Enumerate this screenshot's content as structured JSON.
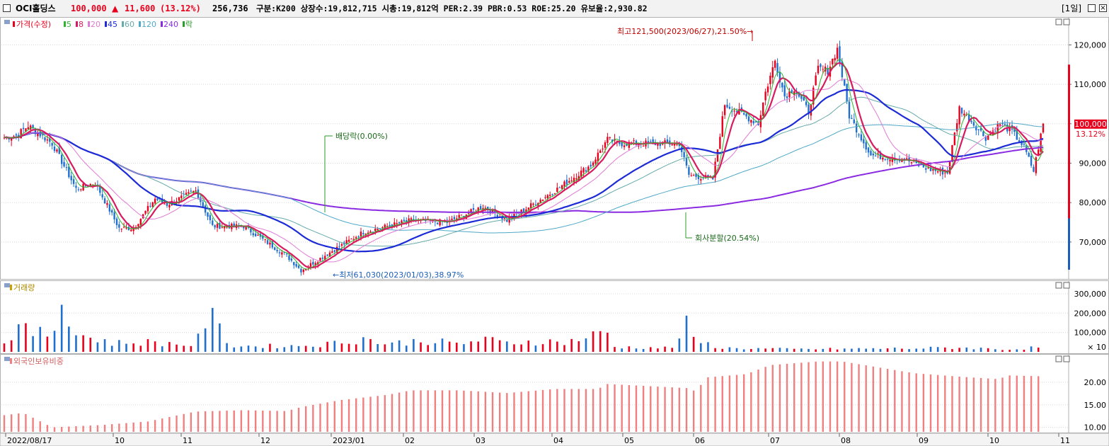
{
  "header": {
    "checkbox_label": "",
    "name": "OCI홀딩스",
    "price": "100,000",
    "change_arrow": "▲",
    "change": "11,600",
    "change_pct": "(13.12%)",
    "volume": "256,736",
    "info": "구분:K200 상장수:19,812,715 시총:19,812억 PER:2.39 PBR:0.53 ROE:25.20 유보율:2,930.82",
    "period": "[1일]"
  },
  "colors": {
    "up": "#e8001c",
    "down": "#1f6fcf",
    "ma5": "#2fb52f",
    "ma8": "#d81b60",
    "ma20": "#e07ad6",
    "ma45": "#1c2bd6",
    "ma60": "#66aaaa",
    "ma120": "#4fa8c8",
    "ma240": "#8a2be2",
    "foreign": "#f08080"
  },
  "legend": {
    "price": "가격(수정)",
    "ma": [
      {
        "label": "5",
        "key": "ma5"
      },
      {
        "label": "8",
        "key": "ma8"
      },
      {
        "label": "20",
        "key": "ma20"
      },
      {
        "label": "45",
        "key": "ma45"
      },
      {
        "label": "60",
        "key": "ma60"
      },
      {
        "label": "120",
        "key": "ma120"
      },
      {
        "label": "240",
        "key": "ma240"
      }
    ],
    "rak": "락"
  },
  "volume_label": "거래량",
  "foreign_label": "외국인보유비중",
  "annotations": {
    "high": "최고121,500(2023/06/27),21.50%→",
    "low": "←최저61,030(2023/01/03),38.97%",
    "dividend": "배당락(0.00%)",
    "split": "회사분할(20.54%)"
  },
  "current": {
    "price_tag": "100,000",
    "pct_tag": "13.12%"
  },
  "chart_data": [
    {
      "type": "candlestick",
      "title": "",
      "y_ticks": [
        "120,000",
        "110,000",
        "100,000",
        "90,000",
        "80,000",
        "70,000"
      ],
      "y_tick_values": [
        120000,
        110000,
        100000,
        90000,
        80000,
        70000
      ],
      "ylim": [
        61000,
        126000
      ],
      "x_tick_labels": [
        "2022/08/17",
        "10",
        "11",
        "12",
        "2023/01",
        "02",
        "03",
        "04",
        "05",
        "06",
        "07",
        "08",
        "09",
        "10",
        "11"
      ],
      "close_anchors": [
        [
          0,
          96500
        ],
        [
          5,
          97000
        ],
        [
          10,
          99500
        ],
        [
          20,
          95000
        ],
        [
          30,
          83500
        ],
        [
          38,
          85000
        ],
        [
          48,
          73500
        ],
        [
          54,
          73500
        ],
        [
          63,
          81000
        ],
        [
          68,
          79500
        ],
        [
          80,
          83000
        ],
        [
          87,
          74000
        ],
        [
          100,
          74000
        ],
        [
          118,
          66500
        ],
        [
          124,
          62800
        ],
        [
          135,
          67000
        ],
        [
          150,
          72500
        ],
        [
          170,
          75500
        ],
        [
          185,
          75000
        ],
        [
          200,
          79000
        ],
        [
          210,
          75500
        ],
        [
          230,
          83000
        ],
        [
          245,
          89500
        ],
        [
          252,
          96000
        ],
        [
          257,
          95000
        ],
        [
          282,
          95000
        ],
        [
          286,
          87000
        ],
        [
          296,
          86000
        ],
        [
          301,
          105000
        ],
        [
          315,
          100000
        ],
        [
          318,
          108000
        ],
        [
          322,
          116000
        ],
        [
          326,
          107000
        ],
        [
          330,
          109000
        ],
        [
          336,
          103000
        ],
        [
          340,
          114000
        ],
        [
          344,
          113500
        ],
        [
          348,
          119000
        ],
        [
          353,
          102000
        ],
        [
          362,
          92000
        ],
        [
          376,
          91000
        ],
        [
          386,
          88500
        ],
        [
          394,
          87500
        ],
        [
          399,
          104000
        ],
        [
          410,
          96500
        ],
        [
          416,
          100000
        ],
        [
          421,
          98000
        ],
        [
          426,
          94000
        ],
        [
          430,
          88000
        ],
        [
          434,
          100000
        ]
      ],
      "high": {
        "value": 121500,
        "date": "2023/06/27"
      },
      "low": {
        "value": 61030,
        "date": "2023/01/03"
      }
    },
    {
      "type": "bar",
      "title": "",
      "y_ticks": [
        "300,000",
        "200,000",
        "100,000"
      ],
      "y_tick_values": [
        300000,
        200000,
        100000
      ],
      "ylim": [
        0,
        340000
      ],
      "unit": "× 10",
      "levels": [
        [
          0,
          40000
        ],
        [
          5,
          130000
        ],
        [
          10,
          100000
        ],
        [
          20,
          90000
        ],
        [
          25,
          300000
        ],
        [
          30,
          90000
        ],
        [
          38,
          70000
        ],
        [
          45,
          45000
        ],
        [
          60,
          50000
        ],
        [
          80,
          35000
        ],
        [
          85,
          200000
        ],
        [
          95,
          30000
        ],
        [
          120,
          30000
        ],
        [
          135,
          40000
        ],
        [
          150,
          70000
        ],
        [
          160,
          40000
        ],
        [
          175,
          60000
        ],
        [
          190,
          40000
        ],
        [
          200,
          65000
        ],
        [
          210,
          45000
        ],
        [
          220,
          55000
        ],
        [
          235,
          50000
        ],
        [
          248,
          90000
        ],
        [
          252,
          100000
        ],
        [
          255,
          25000
        ],
        [
          280,
          20000
        ],
        [
          284,
          160000
        ],
        [
          288,
          60000
        ],
        [
          300,
          20000
        ],
        [
          330,
          14000
        ],
        [
          380,
          18000
        ],
        [
          400,
          22000
        ],
        [
          420,
          12000
        ],
        [
          434,
          25000
        ]
      ]
    },
    {
      "type": "bar",
      "title": "",
      "y_ticks": [
        "20.00",
        "15.00",
        "10.00"
      ],
      "y_tick_values": [
        20,
        15,
        10
      ],
      "ylim": [
        9,
        25
      ],
      "levels": [
        [
          0,
          12.7
        ],
        [
          8,
          13.2
        ],
        [
          20,
          10.0
        ],
        [
          40,
          10.5
        ],
        [
          60,
          11.3
        ],
        [
          80,
          13.5
        ],
        [
          100,
          13.8
        ],
        [
          118,
          13.6
        ],
        [
          124,
          14.5
        ],
        [
          140,
          16.0
        ],
        [
          160,
          17.2
        ],
        [
          170,
          18.2
        ],
        [
          190,
          18.2
        ],
        [
          210,
          17.6
        ],
        [
          230,
          18.5
        ],
        [
          248,
          18.5
        ],
        [
          252,
          19.6
        ],
        [
          285,
          18.7
        ],
        [
          290,
          17.8
        ],
        [
          292,
          21.0
        ],
        [
          310,
          21.8
        ],
        [
          320,
          23.8
        ],
        [
          340,
          24.6
        ],
        [
          350,
          24.6
        ],
        [
          380,
          22.0
        ],
        [
          400,
          21.2
        ],
        [
          415,
          20.7
        ],
        [
          420,
          21.5
        ],
        [
          434,
          21.3
        ]
      ]
    }
  ]
}
